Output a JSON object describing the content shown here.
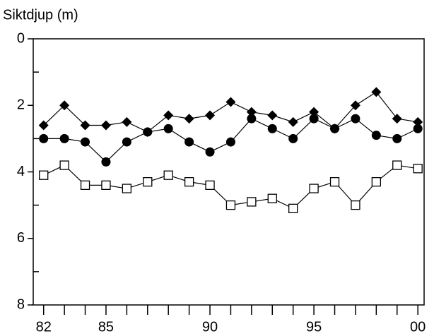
{
  "chart_data": {
    "type": "line",
    "y_label": "Siktdjup (m)",
    "x": [
      1982,
      1983,
      1984,
      1985,
      1986,
      1987,
      1988,
      1989,
      1990,
      1991,
      1992,
      1993,
      1994,
      1995,
      1996,
      1997,
      1998,
      1999,
      2000
    ],
    "series": [
      {
        "color": "#000000",
        "marker": "diamond",
        "values": [
          2.6,
          2.0,
          2.6,
          2.6,
          2.5,
          2.8,
          2.3,
          2.4,
          2.3,
          1.9,
          2.2,
          2.3,
          2.5,
          2.2,
          2.7,
          2.0,
          1.6,
          2.4,
          2.5
        ]
      },
      {
        "color": "#000000",
        "marker": "circle",
        "values": [
          3.0,
          3.0,
          3.1,
          3.7,
          3.1,
          2.8,
          2.7,
          3.1,
          3.4,
          3.1,
          2.4,
          2.7,
          3.0,
          2.4,
          2.7,
          2.4,
          2.9,
          3.0,
          2.7
        ]
      },
      {
        "color": "#000000",
        "marker": "open-square",
        "values": [
          4.1,
          3.8,
          4.4,
          4.4,
          4.5,
          4.3,
          4.1,
          4.3,
          4.4,
          5.0,
          4.9,
          4.8,
          5.1,
          4.5,
          4.3,
          5.0,
          4.3,
          3.8,
          3.9
        ]
      }
    ],
    "xlim": [
      1981.5,
      2000.3
    ],
    "xticks": [
      {
        "value": 1982,
        "label": "82"
      },
      {
        "value": 1985,
        "label": "85"
      },
      {
        "value": 1990,
        "label": "90"
      },
      {
        "value": 1995,
        "label": "95"
      },
      {
        "value": 2000,
        "label": "00"
      }
    ],
    "xminorticks": [
      1983,
      1984,
      1986,
      1987,
      1988,
      1989,
      1991,
      1992,
      1993,
      1994,
      1996,
      1997,
      1998,
      1999
    ],
    "ylim": [
      0,
      8
    ],
    "y_inverted": true,
    "yticks": [
      0,
      2,
      4,
      6,
      8
    ],
    "yminorticks": [
      1,
      3,
      5,
      7
    ],
    "grid": false
  }
}
